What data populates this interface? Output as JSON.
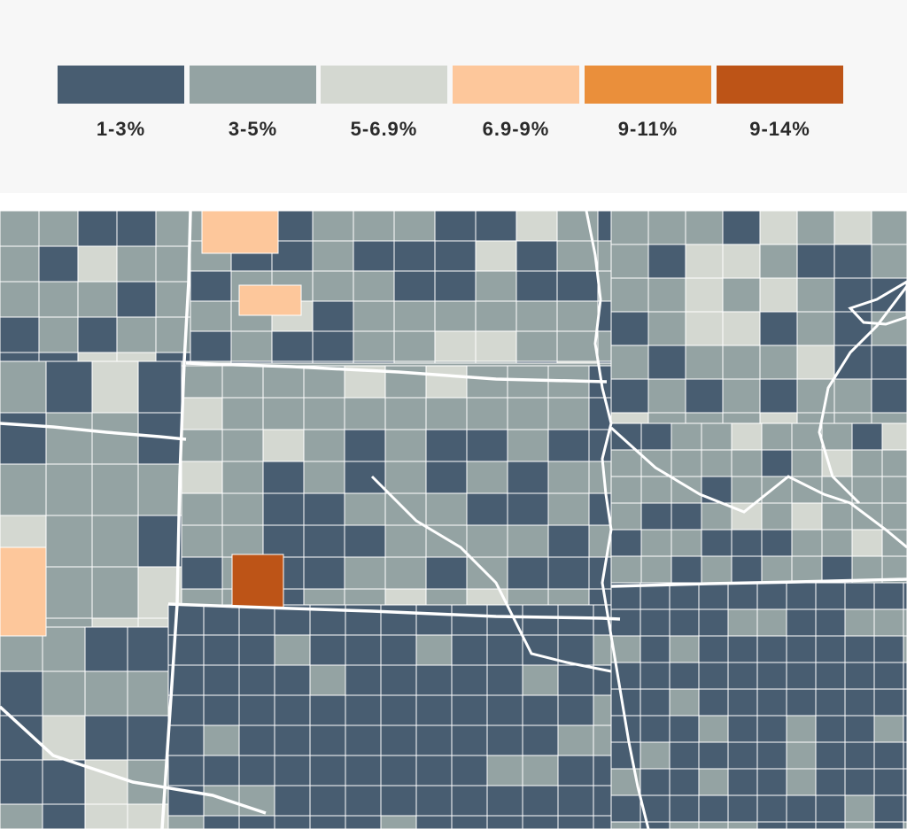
{
  "legend": {
    "items": [
      {
        "label": "1-3%",
        "color": "#485d71"
      },
      {
        "label": "3-5%",
        "color": "#94a3a3"
      },
      {
        "label": "5-6.9%",
        "color": "#d4d8d1"
      },
      {
        "label": "6.9-9%",
        "color": "#fdc79b"
      },
      {
        "label": "9-11%",
        "color": "#ea8f3b"
      },
      {
        "label": "9-14%",
        "color": "#bd5417"
      }
    ]
  },
  "map": {
    "background_color": "#94a3a3",
    "border_color": "#ffffff"
  }
}
